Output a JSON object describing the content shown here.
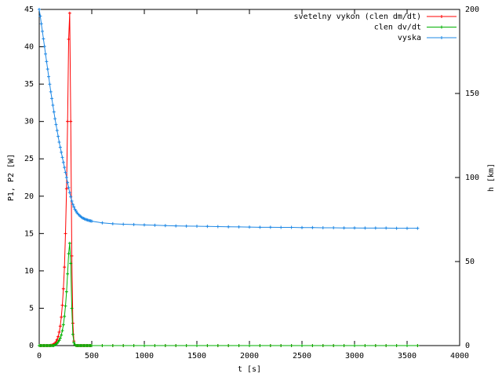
{
  "chart_data": {
    "type": "line",
    "xlabel": "t [s]",
    "ylabel": "P1, P2 [W]",
    "y2label": "h [km]",
    "x": [
      0,
      10,
      20,
      30,
      40,
      50,
      60,
      70,
      80,
      90,
      100,
      110,
      120,
      130,
      140,
      150,
      160,
      170,
      180,
      190,
      200,
      210,
      220,
      230,
      240,
      250,
      260,
      270,
      280,
      290,
      300,
      310,
      320,
      330,
      340,
      350,
      360,
      370,
      380,
      390,
      400,
      410,
      420,
      430,
      440,
      450,
      460,
      470,
      480,
      490,
      500,
      600,
      700,
      800,
      900,
      1000,
      1100,
      1200,
      1300,
      1400,
      1500,
      1600,
      1700,
      1800,
      1900,
      2000,
      2100,
      2200,
      2300,
      2400,
      2500,
      2600,
      2700,
      2800,
      2900,
      3000,
      3100,
      3200,
      3300,
      3400,
      3500,
      3600
    ],
    "series": [
      {
        "name": "svetelny vykon (clen dm/dt)",
        "color": "#ff0000",
        "axis": "y",
        "values": [
          0,
          0,
          0,
          0,
          0,
          0,
          0,
          0,
          0,
          0,
          0,
          0.02,
          0.05,
          0.1,
          0.2,
          0.3,
          0.5,
          0.8,
          1.2,
          1.8,
          2.6,
          3.8,
          5.4,
          7.6,
          10.5,
          15,
          21,
          30,
          41,
          44.5,
          30,
          12,
          3,
          0.6,
          0.1,
          0,
          0,
          0,
          0,
          0,
          0,
          0,
          0,
          0,
          0,
          0,
          0,
          0,
          0,
          0,
          0,
          0,
          0,
          0,
          0,
          0,
          0,
          0,
          0,
          0,
          0,
          0,
          0,
          0,
          0,
          0,
          0,
          0,
          0,
          0,
          0,
          0,
          0,
          0,
          0,
          0,
          0,
          0,
          0,
          0,
          0,
          0
        ]
      },
      {
        "name": "clen dv/dt",
        "color": "#00b000",
        "axis": "y",
        "values": [
          0,
          0,
          0,
          0,
          0,
          0,
          0,
          0,
          0,
          0,
          0,
          0,
          0,
          0,
          0,
          0.1,
          0.2,
          0.3,
          0.5,
          0.7,
          1,
          1.4,
          2,
          2.8,
          3.9,
          5.3,
          7.2,
          9.6,
          12.3,
          13.7,
          11,
          5,
          1.5,
          0.4,
          0.1,
          0,
          0,
          0,
          0,
          0,
          0,
          0,
          0,
          0,
          0,
          0,
          0,
          0,
          0,
          0,
          0,
          0,
          0,
          0,
          0,
          0,
          0,
          0,
          0,
          0,
          0,
          0,
          0,
          0,
          0,
          0,
          0,
          0,
          0,
          0,
          0,
          0,
          0,
          0,
          0,
          0,
          0,
          0,
          0,
          0,
          0,
          0
        ]
      },
      {
        "name": "vyska",
        "color": "#1e88e5",
        "axis": "y2",
        "values": [
          200,
          196,
          191.5,
          187,
          182.5,
          178,
          173.5,
          169,
          164.5,
          160,
          155.5,
          151,
          147,
          143,
          139,
          135,
          131.5,
          128,
          124.5,
          121,
          118,
          115,
          112,
          109,
          106,
          103,
          100,
          97,
          94,
          91,
          88.5,
          86,
          84,
          82.5,
          81,
          80,
          79,
          78.3,
          77.6,
          77,
          76.5,
          76,
          75.7,
          75.4,
          75.1,
          74.9,
          74.7,
          74.5,
          74.3,
          74.2,
          74,
          73,
          72.5,
          72.2,
          72,
          71.8,
          71.6,
          71.4,
          71.2,
          71.1,
          71,
          70.9,
          70.8,
          70.7,
          70.6,
          70.5,
          70.4,
          70.4,
          70.3,
          70.3,
          70.2,
          70.2,
          70.1,
          70.1,
          70,
          70,
          69.9,
          69.9,
          69.9,
          69.8,
          69.8,
          69.8
        ]
      }
    ],
    "xlim": [
      0,
      4000
    ],
    "xticks": [
      0,
      500,
      1000,
      1500,
      2000,
      2500,
      3000,
      3500,
      4000
    ],
    "ylim": [
      0,
      45
    ],
    "yticks": [
      0,
      5,
      10,
      15,
      20,
      25,
      30,
      35,
      40,
      45
    ],
    "y2lim": [
      0,
      200
    ],
    "y2ticks": [
      0,
      50,
      100,
      150,
      200
    ],
    "legend": "top-right"
  }
}
